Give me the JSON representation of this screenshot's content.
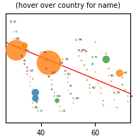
{
  "chart_data": {
    "type": "scatter",
    "title": "(hover over country for name)",
    "xlim": [
      27,
      73
    ],
    "ylim": [
      5,
      100
    ],
    "xticks": [
      40,
      60
    ],
    "yticks": [],
    "tick_labels": "x",
    "series": [
      {
        "type": "scatter",
        "x": [
          29,
          30,
          30,
          31,
          34,
          33,
          34,
          34,
          35,
          35,
          35,
          36,
          37,
          36,
          36,
          37,
          38,
          38,
          37,
          37,
          39,
          40,
          42,
          43,
          42,
          43,
          43,
          44,
          44,
          44,
          45,
          45,
          46,
          47,
          47,
          48,
          48,
          49,
          49,
          50,
          50,
          51,
          50,
          51,
          52,
          52,
          53,
          54,
          54,
          55,
          55,
          56,
          57,
          57,
          57,
          58,
          58,
          58,
          59,
          59,
          60,
          60,
          60,
          61,
          62,
          62,
          63,
          63,
          64,
          64,
          65,
          65,
          66,
          66,
          67,
          67,
          68,
          69,
          70,
          70,
          71,
          72,
          72,
          73,
          73
        ],
        "values": [
          93,
          84,
          78,
          68,
          72,
          63,
          59,
          56,
          53,
          50,
          47,
          45,
          43,
          40,
          37,
          34,
          31,
          26,
          22,
          18,
          15,
          66,
          60,
          57,
          52,
          48,
          45,
          42,
          38,
          34,
          31,
          28,
          24,
          19,
          15,
          60,
          57,
          50,
          47,
          44,
          40,
          37,
          33,
          30,
          26,
          22,
          77,
          68,
          63,
          67,
          59,
          55,
          51,
          46,
          42,
          38,
          35,
          31,
          62,
          56,
          75,
          49,
          43,
          39,
          35,
          30,
          24,
          20,
          60,
          65,
          52,
          46,
          41,
          36,
          31,
          25,
          18,
          48,
          44,
          38,
          33,
          28,
          23,
          18,
          13
        ],
        "sizes": [
          6,
          4,
          4,
          55,
          18,
          7,
          6,
          5,
          5,
          5,
          4,
          4,
          4,
          3,
          3,
          3,
          20,
          18,
          4,
          4,
          4,
          5,
          8,
          65,
          6,
          5,
          6,
          4,
          4,
          5,
          4,
          4,
          13,
          4,
          4,
          5,
          4,
          5,
          4,
          4,
          4,
          6,
          3,
          5,
          4,
          4,
          6,
          6,
          4,
          6,
          4,
          5,
          4,
          4,
          5,
          4,
          5,
          4,
          5,
          6,
          5,
          4,
          4,
          4,
          4,
          4,
          4,
          4,
          20,
          5,
          5,
          4,
          4,
          4,
          6,
          4,
          4,
          20,
          5,
          5,
          5,
          4,
          4,
          4,
          4
        ],
        "colors": [
          "#2ca02c",
          "#ff7f0e",
          "#ff7f0e",
          "#ff7f0e",
          "#ff7f0e",
          "#8c564b",
          "#8c564b",
          "#d62728",
          "#d62728",
          "#d62728",
          "#2ca02c",
          "#ff7f0e",
          "#8c564b",
          "#ff7f0e",
          "#2ca02c",
          "#ff7f0e",
          "#1f77b4",
          "#1f77b4",
          "#ff7f0e",
          "#ff7f0e",
          "#2ca02c",
          "#ff7f0e",
          "#8c564b",
          "#ff7f0e",
          "#d62728",
          "#ff7f0e",
          "#8c564b",
          "#ff7f0e",
          "#1f77b4",
          "#d62728",
          "#ff7f0e",
          "#d62728",
          "#2ca02c",
          "#ff7f0e",
          "#ff7f0e",
          "#ff7f0e",
          "#ff7f0e",
          "#8c564b",
          "#ff7f0e",
          "#ff7f0e",
          "#ff7f0e",
          "#1f77b4",
          "#ff7f0e",
          "#d62728",
          "#1f77b4",
          "#ff7f0e",
          "#ff7f0e",
          "#2ca02c",
          "#ff7f0e",
          "#ff7f0e",
          "#2ca02c",
          "#ff7f0e",
          "#2ca02c",
          "#ff7f0e",
          "#ff7f0e",
          "#2ca02c",
          "#ff7f0e",
          "#ff7f0e",
          "#2ca02c",
          "#2ca02c",
          "#ff7f0e",
          "#ff7f0e",
          "#ff7f0e",
          "#ff7f0e",
          "#ff7f0e",
          "#ff7f0e",
          "#2ca02c",
          "#2ca02c",
          "#2ca02c",
          "#ff7f0e",
          "#ff7f0e",
          "#ff7f0e",
          "#ff7f0e",
          "#ff7f0e",
          "#ff7f0e",
          "#ff7f0e",
          "#2ca02c",
          "#ff7f0e",
          "#ff7f0e",
          "#2ca02c",
          "#2ca02c",
          "#ff7f0e",
          "#ff7f0e",
          "#2ca02c",
          "#2ca02c"
        ],
        "labels": [
          "BY",
          "FI",
          "MN",
          "RU",
          null,
          null,
          null,
          null,
          null,
          "UA",
          null,
          null,
          null,
          null,
          null,
          null,
          null,
          null,
          "TT",
          "PA",
          "LY",
          "RS",
          null,
          "CN",
          null,
          "RO",
          null,
          null,
          null,
          null,
          null,
          "BW",
          null,
          null,
          "GY",
          "TN",
          null,
          null,
          "BD",
          null,
          null,
          null,
          null,
          null,
          "AU",
          null,
          "SA",
          "MX",
          null,
          "TR",
          null,
          null,
          null,
          null,
          null,
          null,
          "AU",
          null,
          "PL",
          null,
          null,
          null,
          null,
          null,
          null,
          null,
          null,
          null,
          null,
          null,
          null,
          "AU",
          null,
          null,
          "KR",
          null,
          null,
          "BR",
          null,
          null,
          null,
          "ZA",
          null,
          null,
          null
        ]
      },
      {
        "type": "line",
        "x": [
          27,
          73
        ],
        "values": [
          75,
          30
        ],
        "color": "red"
      }
    ]
  }
}
